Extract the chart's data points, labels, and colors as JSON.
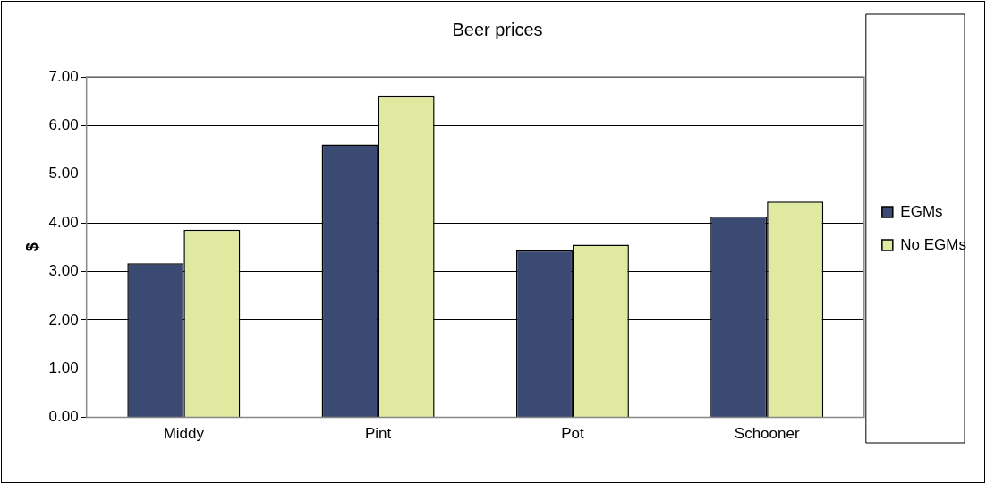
{
  "chart_data": {
    "type": "bar",
    "title": "Beer prices",
    "ylabel": "$",
    "categories": [
      "Middy",
      "Pint",
      "Pot",
      "Schooner"
    ],
    "series": [
      {
        "name": "EGMs",
        "color": "#3b4a72",
        "values": [
          3.17,
          5.61,
          3.43,
          4.13
        ]
      },
      {
        "name": "No EGMs",
        "color": "#dfeaa0",
        "values": [
          3.86,
          6.62,
          3.55,
          4.44
        ]
      }
    ],
    "ylim": [
      0,
      7
    ],
    "yticks": [
      {
        "value": 0,
        "label": "0.00"
      },
      {
        "value": 1,
        "label": "1.00"
      },
      {
        "value": 2,
        "label": "2.00"
      },
      {
        "value": 3,
        "label": "3.00"
      },
      {
        "value": 4,
        "label": "4.00"
      },
      {
        "value": 5,
        "label": "5.00"
      },
      {
        "value": 6,
        "label": "6.00"
      },
      {
        "value": 7,
        "label": "7.00"
      }
    ],
    "grid": "y",
    "legend": "right"
  }
}
